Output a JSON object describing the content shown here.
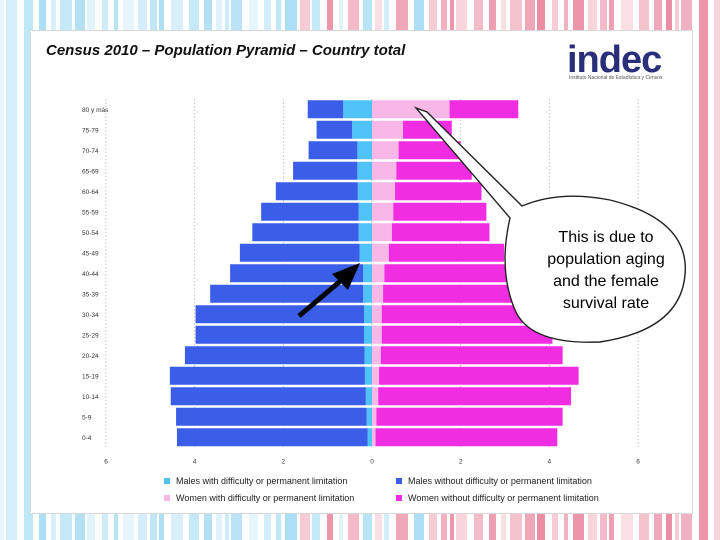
{
  "title": "Census 2010 – Population Pyramid – Country total",
  "logo": {
    "word": "indec",
    "subtitle": "Instituto Nacional de Estadística y Censos"
  },
  "callout": "This is due to population aging and the female survival rate",
  "colors": {
    "males_with": "#4fc3f7",
    "males_without": "#3b5ee8",
    "women_with": "#f7b8e8",
    "women_without": "#f02de0",
    "stripe_blue": "#5cc0e8",
    "stripe_red": "#d8204a"
  },
  "legend": [
    {
      "label": "Males with difficulty or permanent limitation",
      "color": "#4fc3f7"
    },
    {
      "label": "Males without difficulty or permanent limitation",
      "color": "#3b5ee8"
    },
    {
      "label": "Women with difficulty or permanent limitation",
      "color": "#f7b8e8"
    },
    {
      "label": "Women without difficulty or permanent limitation",
      "color": "#f02de0"
    }
  ],
  "chart_data": {
    "type": "bar",
    "orientation": "horizontal-pyramid",
    "categories": [
      "80 y más",
      "75-79",
      "70-74",
      "65-69",
      "60-64",
      "55-59",
      "50-54",
      "45-49",
      "40-44",
      "35-39",
      "30-34",
      "25-29",
      "20-24",
      "15-19",
      "10-14",
      "5-9",
      "0-4"
    ],
    "xlim": [
      -6,
      6
    ],
    "xticks": [
      -6,
      -4,
      -2,
      0,
      2,
      4,
      6
    ],
    "xtick_labels": [
      "6",
      "4",
      "2",
      "0",
      "2",
      "4",
      "6"
    ],
    "grid": true,
    "legend_position": "bottom",
    "series": [
      {
        "name": "Males with difficulty or permanent limitation",
        "side": "left",
        "values": [
          0.65,
          0.45,
          0.33,
          0.33,
          0.32,
          0.3,
          0.3,
          0.28,
          0.2,
          0.2,
          0.18,
          0.18,
          0.17,
          0.16,
          0.14,
          0.12,
          0.1
        ]
      },
      {
        "name": "Males without difficulty or permanent limitation",
        "side": "left",
        "values": [
          0.8,
          0.8,
          1.1,
          1.45,
          1.85,
          2.2,
          2.4,
          2.7,
          3.0,
          3.45,
          3.8,
          3.8,
          4.05,
          4.4,
          4.4,
          4.3,
          4.3
        ]
      },
      {
        "name": "Women with difficulty or permanent limitation",
        "side": "right",
        "values": [
          1.75,
          0.7,
          0.6,
          0.55,
          0.52,
          0.48,
          0.45,
          0.38,
          0.28,
          0.25,
          0.22,
          0.22,
          0.2,
          0.16,
          0.14,
          0.1,
          0.08
        ]
      },
      {
        "name": "Women without difficulty or permanent limitation",
        "side": "right",
        "values": [
          1.55,
          1.1,
          1.4,
          1.7,
          1.95,
          2.1,
          2.2,
          2.6,
          3.0,
          3.3,
          3.9,
          3.85,
          4.1,
          4.5,
          4.35,
          4.2,
          4.1
        ]
      }
    ]
  }
}
